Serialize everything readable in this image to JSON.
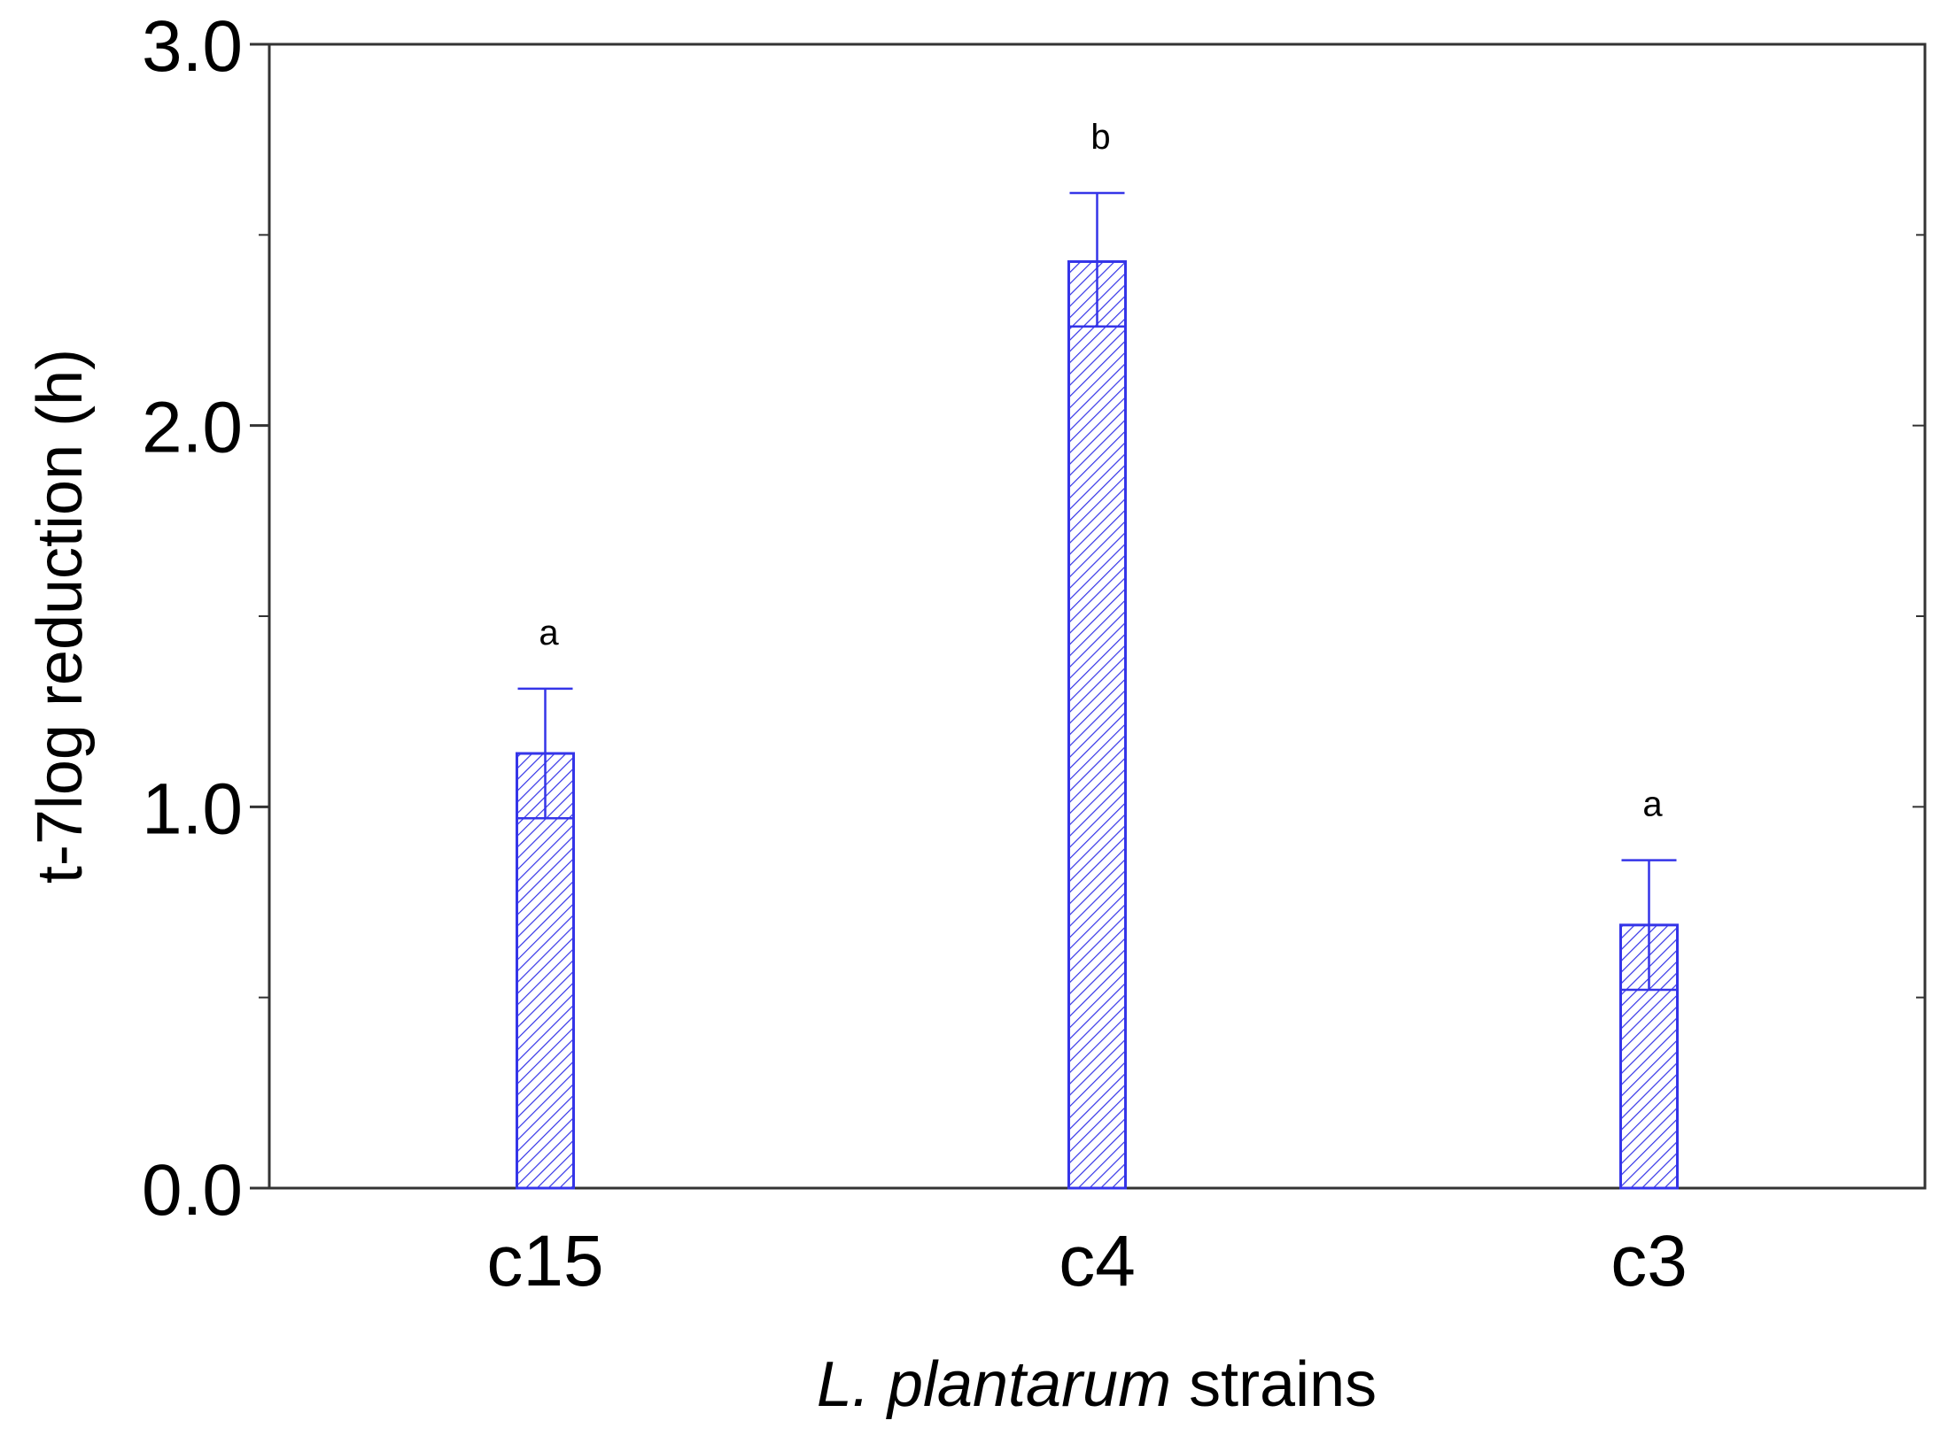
{
  "chart_data": {
    "type": "bar",
    "title": "",
    "xlabel_italic": "L. plantarum",
    "xlabel_rest": " strains",
    "ylabel": "t-7log reduction (h)",
    "categories": [
      "c15",
      "c4",
      "c3"
    ],
    "values": [
      1.14,
      2.43,
      0.69
    ],
    "error_low": [
      0.97,
      2.26,
      0.52
    ],
    "error_high": [
      1.31,
      2.61,
      0.86
    ],
    "significance_letters": [
      "a",
      "b",
      "a"
    ],
    "ylim": [
      0,
      3
    ],
    "yticks": [
      0,
      1,
      2,
      3
    ],
    "ytick_labels": [
      "0.0",
      "1.0",
      "2.0",
      "3.0"
    ],
    "minor_yticks": [
      0.5,
      1.5,
      2.5
    ],
    "bar_color": "#3535e8",
    "fill_pattern": "diagonal-hatch",
    "grid": false,
    "legend": "none"
  }
}
